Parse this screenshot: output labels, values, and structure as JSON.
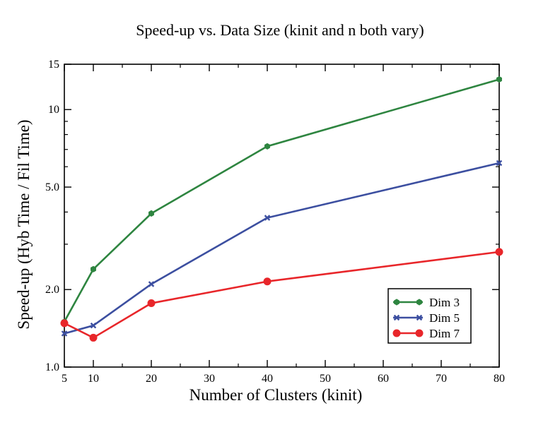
{
  "chart_data": {
    "type": "line",
    "title": "Speed-up vs. Data Size (kinit and n both vary)",
    "xlabel": "Number of Clusters (kinit)",
    "ylabel": "Speed-up (Hyb Time / Fil Time)",
    "x_scale": "linear",
    "y_scale": "log",
    "xlim": [
      5,
      80
    ],
    "ylim": [
      1.0,
      15
    ],
    "x_ticks": [
      5,
      10,
      20,
      30,
      40,
      50,
      60,
      70,
      80
    ],
    "x_tick_labels": [
      "5",
      "10",
      "20",
      "30",
      "40",
      "50",
      "60",
      "70",
      "80"
    ],
    "y_ticks": [
      1.0,
      2.0,
      5.0,
      10,
      15
    ],
    "y_tick_labels": [
      "1.0",
      "2.0",
      "5.0",
      "10",
      "15"
    ],
    "grid": false,
    "legend_position": "bottom-right",
    "x": [
      5,
      10,
      20,
      40,
      80
    ],
    "series": [
      {
        "name": "Dim 3",
        "color": "#2e8540",
        "marker": "hexagon",
        "values": [
          1.5,
          2.4,
          3.95,
          7.2,
          13.1
        ]
      },
      {
        "name": "Dim 5",
        "color": "#3c4fa0",
        "marker": "x",
        "values": [
          1.35,
          1.45,
          2.1,
          3.8,
          6.2
        ]
      },
      {
        "name": "Dim 7",
        "color": "#e8262a",
        "marker": "circle",
        "values": [
          1.48,
          1.3,
          1.77,
          2.15,
          2.8
        ]
      }
    ]
  }
}
